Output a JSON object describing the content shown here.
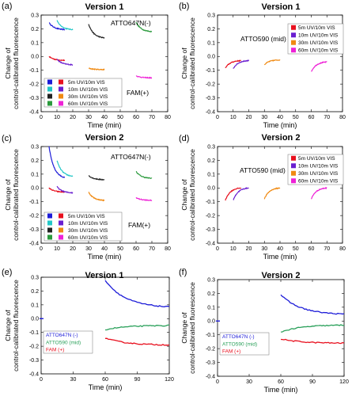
{
  "figure": {
    "panels": [
      {
        "letter": "(a)",
        "title": "Version 1"
      },
      {
        "letter": "(b)",
        "title": "Version 1"
      },
      {
        "letter": "(c)",
        "title": "Version 2"
      },
      {
        "letter": "(d)",
        "title": "Version 2"
      },
      {
        "letter": "(e)",
        "title": "Version 1"
      },
      {
        "letter": "(f)",
        "title": "Version 2"
      }
    ],
    "ylabel_line1": "Change of",
    "ylabel_line2": "control-calibrated fluorescence",
    "xlabel": "Time (min)"
  },
  "colors": {
    "red": "#e8101e",
    "blue": "#1d1cd8",
    "cyan": "#22c7c7",
    "black": "#222222",
    "green": "#2a9a3c",
    "purple": "#6a1fd0",
    "orange": "#f08a12",
    "magenta": "#ee22d6",
    "e_green": "#2aa05a"
  },
  "chart_data": [
    {
      "type": "line",
      "panel": "(a)",
      "title": "Version 1",
      "xlabel": "Time (min)",
      "ylabel": "Change of control-calibrated fluorescence",
      "xlim": [
        0,
        80
      ],
      "ylim": [
        -0.4,
        0.3
      ],
      "xticks": [
        "0",
        "10",
        "20",
        "30",
        "40",
        "50",
        "60",
        "70",
        "80"
      ],
      "yticks": [
        "-0.4",
        "-0.3",
        "-0.2",
        "-0.1",
        "0.0",
        "0.1",
        "0.2",
        "0.3"
      ],
      "annotations": [
        "ATTO647N(-)",
        "FAM(+)"
      ],
      "legend": {
        "entries": [
          "5m UV/10m VIS",
          "10m UV/10m VIS",
          "30m UV/10m VIS",
          "60m UV/10m VIS"
        ],
        "position": "bottom-left"
      },
      "series": [
        {
          "name": "5m UV/10m VIS",
          "color": "blue",
          "x": [
            5,
            15
          ],
          "y": [
            0.245,
            0.195
          ]
        },
        {
          "name": "5m UV/10m VIS",
          "color": "red",
          "x": [
            5,
            15
          ],
          "y": [
            0.0,
            -0.028
          ]
        },
        {
          "name": "10m UV/10m VIS",
          "color": "cyan",
          "x": [
            10,
            20
          ],
          "y": [
            0.26,
            0.195
          ]
        },
        {
          "name": "10m UV/10m VIS",
          "color": "purple",
          "x": [
            10,
            20
          ],
          "y": [
            -0.02,
            -0.06
          ]
        },
        {
          "name": "30m UV/10m VIS",
          "color": "black",
          "x": [
            30,
            40
          ],
          "y": [
            0.235,
            0.135
          ]
        },
        {
          "name": "30m UV/10m VIS",
          "color": "orange",
          "x": [
            30,
            40
          ],
          "y": [
            -0.085,
            -0.095
          ]
        },
        {
          "name": "60m UV/10m VIS",
          "color": "green",
          "x": [
            60,
            70
          ],
          "y": [
            0.25,
            0.18
          ]
        },
        {
          "name": "60m UV/10m VIS",
          "color": "magenta",
          "x": [
            60,
            70
          ],
          "y": [
            -0.14,
            -0.155
          ]
        }
      ]
    },
    {
      "type": "line",
      "panel": "(b)",
      "title": "Version 1",
      "xlabel": "Time (min)",
      "ylabel": "Change of control-calibrated fluorescence",
      "xlim": [
        0,
        80
      ],
      "ylim": [
        -0.4,
        0.3
      ],
      "xticks": [
        "0",
        "10",
        "20",
        "30",
        "40",
        "50",
        "60",
        "70",
        "80"
      ],
      "yticks": [
        "-0.4",
        "-0.3",
        "-0.2",
        "-0.1",
        "0.0",
        "0.1",
        "0.2",
        "0.3"
      ],
      "annotations": [
        "ATTO590 (mid)"
      ],
      "legend": {
        "entries": [
          "5m UV/10m VIS",
          "10m UV/10m VIS",
          "30m UV/10m VIS",
          "60m UV/10m VIS"
        ],
        "position": "top-right"
      },
      "series": [
        {
          "name": "5m UV/10m VIS",
          "color": "red",
          "x": [
            5,
            15
          ],
          "y": [
            -0.085,
            -0.03
          ]
        },
        {
          "name": "10m UV/10m VIS",
          "color": "purple",
          "x": [
            10,
            20
          ],
          "y": [
            -0.09,
            -0.03
          ]
        },
        {
          "name": "30m UV/10m VIS",
          "color": "orange",
          "x": [
            30,
            40
          ],
          "y": [
            -0.06,
            -0.025
          ]
        },
        {
          "name": "60m UV/10m VIS",
          "color": "magenta",
          "x": [
            60,
            70
          ],
          "y": [
            -0.11,
            -0.04
          ]
        }
      ]
    },
    {
      "type": "line",
      "panel": "(c)",
      "title": "Version 2",
      "xlabel": "Time (min)",
      "ylabel": "Change of control-calibrated fluorescence",
      "xlim": [
        0,
        80
      ],
      "ylim": [
        -0.4,
        0.3
      ],
      "xticks": [
        "0",
        "10",
        "20",
        "30",
        "40",
        "50",
        "60",
        "70",
        "80"
      ],
      "yticks": [
        "-0.4",
        "-0.3",
        "-0.2",
        "-0.1",
        "0.0",
        "0.1",
        "0.2",
        "0.3"
      ],
      "annotations": [
        "ATTO647N(-)",
        "FAM(+)"
      ],
      "legend": {
        "entries": [
          "5m UV/10m VIS",
          "10m UV/10m VIS",
          "30m UV/10m VIS",
          "60m UV/10m VIS"
        ],
        "position": "bottom-left"
      },
      "series": [
        {
          "name": "5m UV/10m VIS",
          "color": "blue",
          "x": [
            5,
            15
          ],
          "y": [
            0.3,
            0.075
          ]
        },
        {
          "name": "5m UV/10m VIS",
          "color": "red",
          "x": [
            5,
            15
          ],
          "y": [
            0.0,
            -0.03
          ]
        },
        {
          "name": "10m UV/10m VIS",
          "color": "cyan",
          "x": [
            10,
            20
          ],
          "y": [
            0.2,
            0.085
          ]
        },
        {
          "name": "10m UV/10m VIS",
          "color": "purple",
          "x": [
            10,
            20
          ],
          "y": [
            0.01,
            -0.035
          ]
        },
        {
          "name": "30m UV/10m VIS",
          "color": "black",
          "x": [
            30,
            40
          ],
          "y": [
            0.09,
            0.06
          ]
        },
        {
          "name": "30m UV/10m VIS",
          "color": "orange",
          "x": [
            30,
            40
          ],
          "y": [
            -0.03,
            -0.09
          ]
        },
        {
          "name": "60m UV/10m VIS",
          "color": "green",
          "x": [
            60,
            70
          ],
          "y": [
            0.12,
            0.07
          ]
        },
        {
          "name": "60m UV/10m VIS",
          "color": "magenta",
          "x": [
            60,
            70
          ],
          "y": [
            -0.07,
            -0.09
          ]
        }
      ]
    },
    {
      "type": "line",
      "panel": "(d)",
      "title": "Version 2",
      "xlabel": "Time (min)",
      "ylabel": "Change of control-calibrated fluorescence",
      "xlim": [
        0,
        80
      ],
      "ylim": [
        -0.4,
        0.3
      ],
      "xticks": [
        "0",
        "10",
        "20",
        "30",
        "40",
        "50",
        "60",
        "70",
        "80"
      ],
      "yticks": [
        "-0.4",
        "-0.3",
        "-0.2",
        "-0.1",
        "0.0",
        "0.1",
        "0.2",
        "0.3"
      ],
      "annotations": [
        "ATTO590 (mid)"
      ],
      "legend": {
        "entries": [
          "5m UV/10m VIS",
          "10m UV/10m VIS",
          "30m UV/10m VIS",
          "60m UV/10m VIS"
        ],
        "position": "top-right"
      },
      "series": [
        {
          "name": "5m UV/10m VIS",
          "color": "red",
          "x": [
            5,
            15
          ],
          "y": [
            -0.09,
            0.0
          ]
        },
        {
          "name": "10m UV/10m VIS",
          "color": "purple",
          "x": [
            10,
            20
          ],
          "y": [
            -0.09,
            0.0
          ]
        },
        {
          "name": "30m UV/10m VIS",
          "color": "orange",
          "x": [
            30,
            40
          ],
          "y": [
            -0.08,
            0.0
          ]
        },
        {
          "name": "60m UV/10m VIS",
          "color": "magenta",
          "x": [
            60,
            70
          ],
          "y": [
            -0.08,
            0.0
          ]
        }
      ]
    },
    {
      "type": "line",
      "panel": "(e)",
      "title": "Version 1",
      "xlabel": "Time (min)",
      "ylabel": "Change of control-calibrated fluorescence",
      "xlim": [
        0,
        120
      ],
      "ylim": [
        -0.4,
        0.3
      ],
      "xticks": [
        "0",
        "30",
        "60",
        "90",
        "120"
      ],
      "yticks": [
        "-0.4",
        "-0.3",
        "-0.2",
        "-0.1",
        "0.0",
        "0.1",
        "0.2",
        "0.3"
      ],
      "legend": {
        "entries": [
          "ATTO647N (-)",
          "ATTO590 (mid)",
          "FAM (+)"
        ],
        "position": "bottom-left"
      },
      "series": [
        {
          "name": "ATTO647N (-)",
          "color": "blue",
          "x": [
            60,
            120
          ],
          "y": [
            0.28,
            0.085
          ]
        },
        {
          "name": "ATTO590 (mid)",
          "color": "e_green",
          "x": [
            60,
            120
          ],
          "y": [
            -0.08,
            -0.05
          ]
        },
        {
          "name": "FAM (+)",
          "color": "red",
          "x": [
            60,
            120
          ],
          "y": [
            -0.14,
            -0.19
          ]
        }
      ]
    },
    {
      "type": "line",
      "panel": "(f)",
      "title": "Version 2",
      "xlabel": "Time (min)",
      "ylabel": "Change of control-calibrated fluorescence",
      "xlim": [
        0,
        120
      ],
      "ylim": [
        -0.4,
        0.3
      ],
      "xticks": [
        "0",
        "30",
        "60",
        "90",
        "120"
      ],
      "yticks": [
        "-0.4",
        "-0.3",
        "-0.2",
        "-0.1",
        "0.0",
        "0.1",
        "0.2",
        "0.3"
      ],
      "legend": {
        "entries": [
          "ATTO647N (-)",
          "ATTO590 (mid)",
          "FAM (+)"
        ],
        "position": "bottom-left"
      },
      "series": [
        {
          "name": "ATTO647N (-)",
          "color": "blue",
          "x": [
            60,
            120
          ],
          "y": [
            0.19,
            0.05
          ]
        },
        {
          "name": "ATTO590 (mid)",
          "color": "e_green",
          "x": [
            60,
            120
          ],
          "y": [
            -0.08,
            -0.03
          ]
        },
        {
          "name": "FAM (+)",
          "color": "red",
          "x": [
            60,
            120
          ],
          "y": [
            -0.13,
            -0.16
          ]
        }
      ]
    }
  ]
}
